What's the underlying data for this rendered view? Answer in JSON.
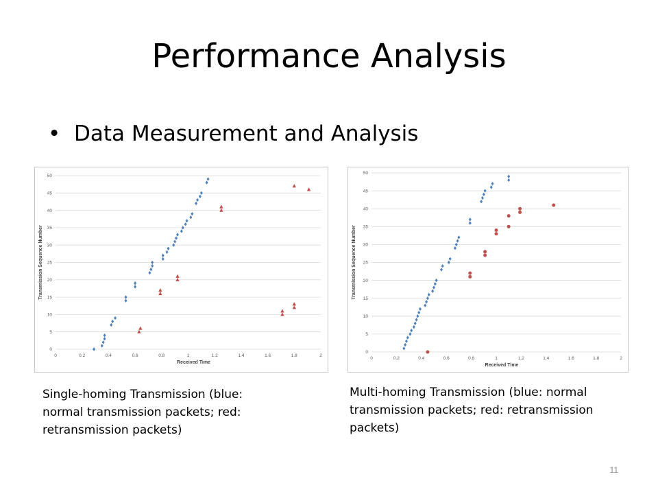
{
  "slide": {
    "title": "Performance Analysis",
    "bullet": "Data Measurement and Analysis",
    "page_number": "11"
  },
  "captions": [
    "Single-homing Transmission (blue: normal transmission packets; red: retransmission packets)",
    "Multi-homing Transmission (blue: normal transmission packets; red: retransmission packets)"
  ],
  "colors": {
    "blue": "#4f81bd",
    "red": "#c0504d",
    "grid": "#d9d9d9",
    "frame": "#c8c8c8"
  },
  "chart_data": [
    {
      "type": "scatter",
      "title": "",
      "xlabel": "Received Time",
      "ylabel": "Transmission Sequence Number",
      "xlim": [
        0,
        2
      ],
      "ylim": [
        0,
        50
      ],
      "xticks": [
        "0",
        "0.2",
        "0.4",
        "0.6",
        "0.8",
        "1",
        "1.2",
        "1.4",
        "1.6",
        "1.8",
        "2"
      ],
      "yticks": [
        "0",
        "5",
        "10",
        "15",
        "20",
        "25",
        "30",
        "35",
        "40",
        "45",
        "50"
      ],
      "grid": "horizontal",
      "legend": "none",
      "series": [
        {
          "color": "#4f81bd",
          "marker": "diamond",
          "points": [
            [
              0.29,
              0
            ],
            [
              0.35,
              1
            ],
            [
              0.36,
              2
            ],
            [
              0.37,
              3
            ],
            [
              0.37,
              4
            ],
            [
              0.42,
              7
            ],
            [
              0.43,
              8
            ],
            [
              0.45,
              9
            ],
            [
              0.53,
              14
            ],
            [
              0.53,
              15
            ],
            [
              0.6,
              18
            ],
            [
              0.6,
              19
            ],
            [
              0.71,
              22
            ],
            [
              0.72,
              23
            ],
            [
              0.73,
              24
            ],
            [
              0.73,
              25
            ],
            [
              0.81,
              26
            ],
            [
              0.81,
              27
            ],
            [
              0.84,
              28
            ],
            [
              0.85,
              29
            ],
            [
              0.89,
              30
            ],
            [
              0.9,
              31
            ],
            [
              0.91,
              32
            ],
            [
              0.92,
              33
            ],
            [
              0.95,
              34
            ],
            [
              0.96,
              35
            ],
            [
              0.98,
              36
            ],
            [
              0.99,
              37
            ],
            [
              1.02,
              38
            ],
            [
              1.03,
              39
            ],
            [
              1.06,
              42
            ],
            [
              1.07,
              43
            ],
            [
              1.09,
              44
            ],
            [
              1.1,
              45
            ],
            [
              1.14,
              48
            ],
            [
              1.15,
              49
            ]
          ]
        },
        {
          "color": "#c0504d",
          "marker": "triangle",
          "points": [
            [
              0.63,
              5
            ],
            [
              0.64,
              6
            ],
            [
              0.79,
              16
            ],
            [
              0.79,
              17
            ],
            [
              0.92,
              20
            ],
            [
              0.92,
              21
            ],
            [
              1.25,
              40
            ],
            [
              1.25,
              41
            ],
            [
              1.71,
              10
            ],
            [
              1.71,
              11
            ],
            [
              1.8,
              12
            ],
            [
              1.8,
              13
            ],
            [
              1.8,
              47
            ],
            [
              1.91,
              46
            ]
          ]
        }
      ]
    },
    {
      "type": "scatter",
      "title": "",
      "xlabel": "Received Time",
      "ylabel": "Transmission Sequence Number",
      "xlim": [
        0,
        2
      ],
      "ylim": [
        0,
        50
      ],
      "xticks": [
        "0",
        "0.2",
        "0.4",
        "0.6",
        "0.8",
        "1",
        "1.2",
        "1.4",
        "1.6",
        "1.8",
        "2"
      ],
      "yticks": [
        "0",
        "5",
        "10",
        "15",
        "20",
        "25",
        "30",
        "35",
        "40",
        "45",
        "50"
      ],
      "grid": "horizontal",
      "legend": "none",
      "series": [
        {
          "color": "#4f81bd",
          "marker": "diamond",
          "points": [
            [
              0.26,
              1
            ],
            [
              0.27,
              2
            ],
            [
              0.28,
              3
            ],
            [
              0.29,
              4
            ],
            [
              0.31,
              5
            ],
            [
              0.32,
              6
            ],
            [
              0.34,
              7
            ],
            [
              0.35,
              8
            ],
            [
              0.36,
              9
            ],
            [
              0.37,
              10
            ],
            [
              0.38,
              11
            ],
            [
              0.39,
              12
            ],
            [
              0.43,
              13
            ],
            [
              0.44,
              14
            ],
            [
              0.45,
              15
            ],
            [
              0.46,
              16
            ],
            [
              0.49,
              17
            ],
            [
              0.5,
              18
            ],
            [
              0.51,
              19
            ],
            [
              0.52,
              20
            ],
            [
              0.56,
              23
            ],
            [
              0.57,
              24
            ],
            [
              0.62,
              25
            ],
            [
              0.63,
              26
            ],
            [
              0.67,
              29
            ],
            [
              0.68,
              30
            ],
            [
              0.69,
              31
            ],
            [
              0.7,
              32
            ],
            [
              0.79,
              36
            ],
            [
              0.79,
              37
            ],
            [
              0.88,
              42
            ],
            [
              0.89,
              43
            ],
            [
              0.9,
              44
            ],
            [
              0.91,
              45
            ],
            [
              0.96,
              46
            ],
            [
              0.97,
              47
            ],
            [
              1.1,
              48
            ],
            [
              1.1,
              49
            ]
          ]
        },
        {
          "color": "#c0504d",
          "marker": "circle",
          "points": [
            [
              0.45,
              0
            ],
            [
              0.79,
              21
            ],
            [
              0.79,
              22
            ],
            [
              0.91,
              27
            ],
            [
              0.91,
              28
            ],
            [
              1.0,
              33
            ],
            [
              1.0,
              34
            ],
            [
              1.1,
              35
            ],
            [
              1.1,
              38
            ],
            [
              1.19,
              39
            ],
            [
              1.19,
              40
            ],
            [
              1.46,
              41
            ]
          ]
        }
      ]
    }
  ]
}
